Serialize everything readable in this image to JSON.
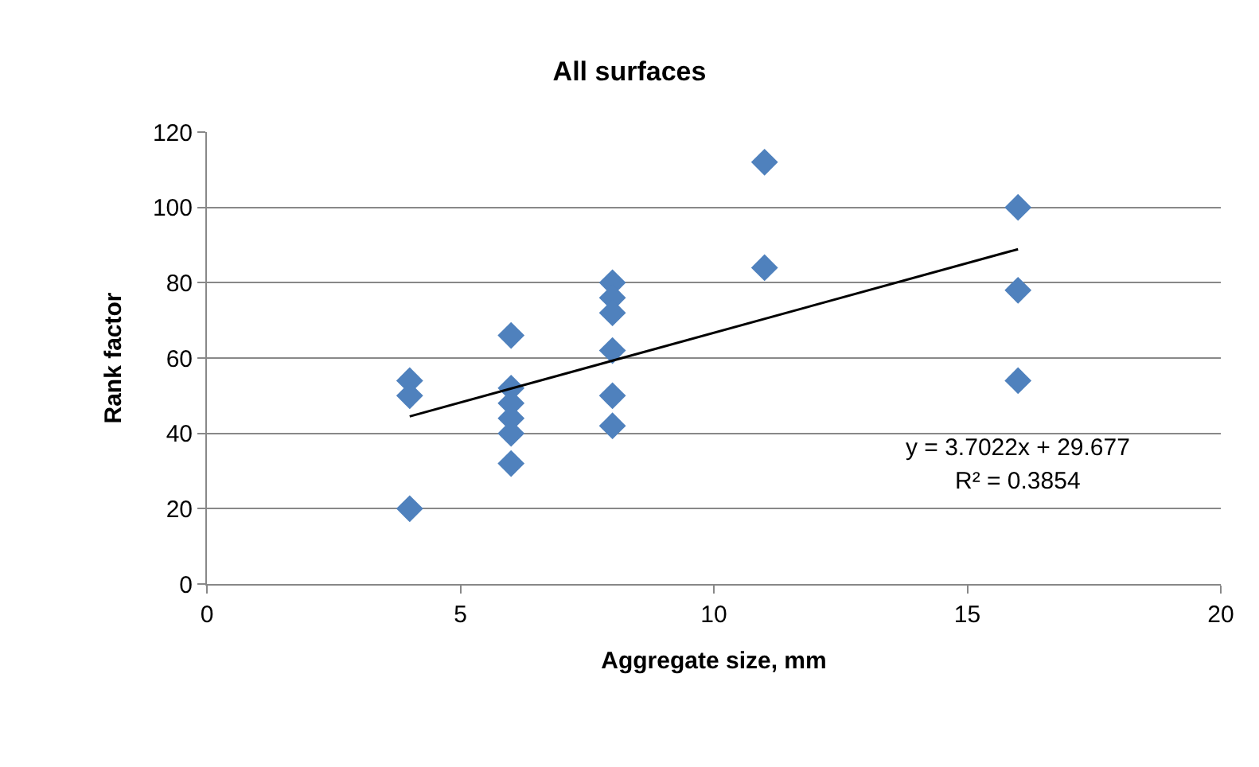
{
  "chart_data": {
    "type": "scatter",
    "title": "All surfaces",
    "xlabel": "Aggregate size, mm",
    "ylabel": "Rank factor",
    "series": [
      {
        "color": "#4f81bd",
        "marker": "diamond",
        "x": [
          4,
          4,
          4,
          6,
          6,
          6,
          6,
          6,
          6,
          8,
          8,
          8,
          8,
          8,
          8,
          11,
          11,
          16,
          16,
          16
        ],
        "values": [
          54,
          50,
          20,
          66,
          52,
          48,
          44,
          40,
          32,
          80,
          76,
          72,
          62,
          50,
          42,
          112,
          84,
          100,
          78,
          54
        ]
      },
      {
        "type": "line",
        "color": "#000000",
        "marker": "none",
        "line_style": "solid",
        "x": [
          4,
          16
        ],
        "values": [
          44.5,
          88.9
        ]
      }
    ],
    "annotations": [
      "y = 3.7022x + 29.677",
      "R² = 0.3854"
    ],
    "xlim": [
      0,
      20
    ],
    "xticks": [
      0,
      5,
      10,
      15,
      20
    ],
    "ylim": [
      0,
      120
    ],
    "yticks": [
      0,
      20,
      40,
      60,
      80,
      100,
      120
    ],
    "grid": "y"
  }
}
